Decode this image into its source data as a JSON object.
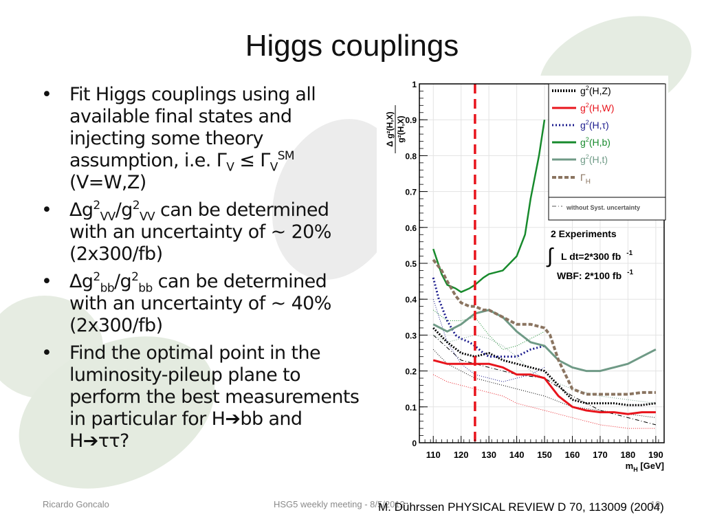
{
  "slide": {
    "title": "Higgs couplings",
    "bullets": [
      {
        "text": "Fit Higgs couplings using all available final states and injecting some theory assumption, i.e. Γ",
        "sub": "V",
        "rel": " ≤ Γ",
        "sub2": "V",
        "sup2": "SM",
        "tail": " (V=W,Z)"
      },
      {
        "pre": "Δg",
        "sup1": "2",
        "sub1": "VV",
        "mid": "/g",
        "sup2": "2",
        "sub2": "VV",
        "post": " can be determined with an uncertainty of ~ 20% (2x300/fb)"
      },
      {
        "pre": "Δg",
        "sup1": "2",
        "sub1": "bb",
        "mid": "/g",
        "sup2": "2",
        "sub2": "bb",
        "post": " can be determined with an uncertainty of ~ 40% (2x300/fb)"
      },
      {
        "text": "Find the optimal point in the luminosity-pileup plane to perform the best measurements in particular for H",
        "arrow1": "➔",
        "mid": "bb and H",
        "arrow2": "➔",
        "tail": "ττ?"
      }
    ],
    "bullet_symbol": "•"
  },
  "footer": {
    "author": "Ricardo Goncalo",
    "meeting": "HSG5 weekly meeting - 8/5/2012",
    "page": "10",
    "citation": "M. Dührssen PHYSICAL REVIEW D 70, 113009 (2004)"
  },
  "chart_data": {
    "type": "line",
    "ylabel": "Δ g²(H,X) / g²(H,X)",
    "xlabel": "m",
    "xlabel_sub": "H",
    "xlabel_unit": " [GeV]",
    "xlim": [
      105,
      193
    ],
    "ylim": [
      0,
      1
    ],
    "xticks": [
      "110",
      "120",
      "130",
      "140",
      "150",
      "160",
      "170",
      "180",
      "190"
    ],
    "xtick_values": [
      110,
      120,
      130,
      140,
      150,
      160,
      170,
      180,
      190
    ],
    "yticks": [
      "0",
      "0.1",
      "0.2",
      "0.3",
      "0.4",
      "0.5",
      "0.6",
      "0.7",
      "0.8",
      "0.9",
      "1"
    ],
    "ytick_values": [
      0,
      0.1,
      0.2,
      0.3,
      0.4,
      0.5,
      0.6,
      0.7,
      0.8,
      0.9,
      1.0
    ],
    "vertical_line_x": 125,
    "annotation": {
      "line1": "2 Experiments",
      "integral": "∫",
      "line2": "L dt=2*300 fb",
      "line2_sup": "-1",
      "line3": "WBF: 2*100 fb",
      "line3_sup": "-1"
    },
    "legend": [
      {
        "pre": "g",
        "sup": "2",
        "post": "(H,Z)",
        "color": "#000000",
        "style": "dotted-thick"
      },
      {
        "pre": "g",
        "sup": "2",
        "post": "(H,W)",
        "color": "#e8141c",
        "style": "solid"
      },
      {
        "pre": "g",
        "sup": "2",
        "post": "(H,τ)",
        "color": "#1a1a8c",
        "style": "dotted"
      },
      {
        "pre": "g",
        "sup": "2",
        "post": "(H,b)",
        "color": "#178a2c",
        "style": "solid"
      },
      {
        "pre": "g",
        "sup": "2",
        "post": "(H,t)",
        "color": "#6f9a86",
        "style": "solid"
      },
      {
        "pre": "Γ",
        "sup": "",
        "post": "H",
        "color": "#8a7460",
        "style": "dashed-thick"
      },
      {
        "pre": "without Syst. uncertainty",
        "sup": "",
        "post": "",
        "color": "#555555",
        "style": "dashdot-thin"
      }
    ],
    "series": [
      {
        "color": "#e8141c",
        "style": "solid",
        "width": 3,
        "x": [
          110,
          115,
          120,
          125,
          130,
          135,
          140,
          145,
          150,
          155,
          160,
          165,
          170,
          175,
          180,
          185,
          190
        ],
        "y": [
          0.23,
          0.22,
          0.22,
          0.22,
          0.22,
          0.21,
          0.19,
          0.19,
          0.18,
          0.13,
          0.1,
          0.09,
          0.085,
          0.085,
          0.08,
          0.085,
          0.085
        ]
      },
      {
        "color": "#000000",
        "style": "dotted-thick",
        "width": 3,
        "x": [
          110,
          115,
          120,
          125,
          130,
          135,
          140,
          145,
          150,
          155,
          160,
          165,
          170,
          175,
          180,
          185,
          190
        ],
        "y": [
          0.32,
          0.28,
          0.25,
          0.24,
          0.25,
          0.23,
          0.22,
          0.21,
          0.2,
          0.16,
          0.12,
          0.11,
          0.11,
          0.11,
          0.105,
          0.105,
          0.11
        ]
      },
      {
        "color": "#1a1a8c",
        "style": "dotted",
        "width": 3,
        "x": [
          110,
          112,
          115,
          118,
          120,
          123,
          125,
          128,
          130,
          133,
          135,
          140,
          145,
          150
        ],
        "y": [
          0.46,
          0.4,
          0.34,
          0.3,
          0.29,
          0.28,
          0.27,
          0.25,
          0.24,
          0.24,
          0.24,
          0.24,
          0.26,
          0.27
        ]
      },
      {
        "color": "#178a2c",
        "style": "solid",
        "width": 2.5,
        "x": [
          110,
          113,
          115,
          118,
          120,
          123,
          125,
          128,
          130,
          135,
          140,
          143,
          145,
          148,
          150
        ],
        "y": [
          0.54,
          0.47,
          0.44,
          0.43,
          0.42,
          0.43,
          0.44,
          0.46,
          0.47,
          0.48,
          0.52,
          0.58,
          0.68,
          0.8,
          0.9
        ]
      },
      {
        "color": "#6f9a86",
        "style": "solid",
        "width": 3,
        "x": [
          110,
          115,
          120,
          125,
          130,
          135,
          140,
          145,
          150,
          155,
          160,
          165,
          170,
          175,
          180,
          185,
          190
        ],
        "y": [
          0.33,
          0.31,
          0.33,
          0.36,
          0.37,
          0.35,
          0.31,
          0.28,
          0.27,
          0.23,
          0.21,
          0.2,
          0.2,
          0.21,
          0.22,
          0.24,
          0.26
        ]
      },
      {
        "color": "#8a7460",
        "style": "dashed-thick",
        "width": 4,
        "x": [
          110,
          113,
          115,
          118,
          120,
          123,
          125,
          128,
          130,
          135,
          140,
          145,
          150,
          152,
          155,
          160,
          165,
          170,
          175,
          180,
          185,
          190
        ],
        "y": [
          0.51,
          0.48,
          0.45,
          0.41,
          0.39,
          0.38,
          0.38,
          0.37,
          0.37,
          0.35,
          0.33,
          0.33,
          0.32,
          0.3,
          0.23,
          0.15,
          0.135,
          0.135,
          0.135,
          0.135,
          0.14,
          0.14
        ]
      },
      {
        "color": "#000000",
        "style": "dashdot-thin",
        "width": 1,
        "x": [
          110,
          120,
          130,
          140,
          150,
          160,
          170,
          180,
          190
        ],
        "y": [
          0.3,
          0.23,
          0.21,
          0.19,
          0.18,
          0.13,
          0.09,
          0.07,
          0.05
        ]
      },
      {
        "color": "#e8141c",
        "style": "dotted-thin",
        "width": 1,
        "x": [
          110,
          115,
          120,
          125,
          130,
          135,
          140,
          145,
          150,
          160,
          170,
          180,
          190
        ],
        "y": [
          0.19,
          0.17,
          0.16,
          0.15,
          0.14,
          0.13,
          0.11,
          0.1,
          0.09,
          0.07,
          0.05,
          0.04,
          0.04
        ]
      },
      {
        "color": "#1a1a8c",
        "style": "dotted-thin",
        "width": 1,
        "x": [
          110,
          115,
          120,
          125,
          130,
          135,
          140,
          145,
          150
        ],
        "y": [
          0.4,
          0.28,
          0.22,
          0.19,
          0.18,
          0.17,
          0.18,
          0.19,
          0.21
        ]
      },
      {
        "color": "#178a2c",
        "style": "dotted-thin",
        "width": 1,
        "x": [
          110,
          115,
          120,
          125,
          130,
          135,
          140,
          145,
          150
        ],
        "y": [
          0.37,
          0.34,
          0.34,
          0.35,
          0.3,
          0.26,
          0.27,
          0.29,
          0.31
        ]
      },
      {
        "color": "#6f9a86",
        "style": "dotted-thin",
        "width": 1,
        "x": [
          110,
          115,
          120,
          125,
          130,
          135,
          140,
          145,
          150,
          160,
          170,
          180,
          190
        ],
        "y": [
          0.3,
          0.28,
          0.29,
          0.3,
          0.29,
          0.27,
          0.24,
          0.2,
          0.18,
          0.15,
          0.13,
          0.12,
          0.11
        ]
      },
      {
        "color": "#000000",
        "style": "dotted-thin",
        "width": 1,
        "x": [
          110,
          115,
          120,
          125,
          130,
          135,
          140,
          145,
          150,
          160,
          170,
          180,
          190
        ],
        "y": [
          0.26,
          0.22,
          0.2,
          0.18,
          0.17,
          0.16,
          0.15,
          0.14,
          0.13,
          0.1,
          0.09,
          0.08,
          0.07
        ]
      }
    ]
  }
}
